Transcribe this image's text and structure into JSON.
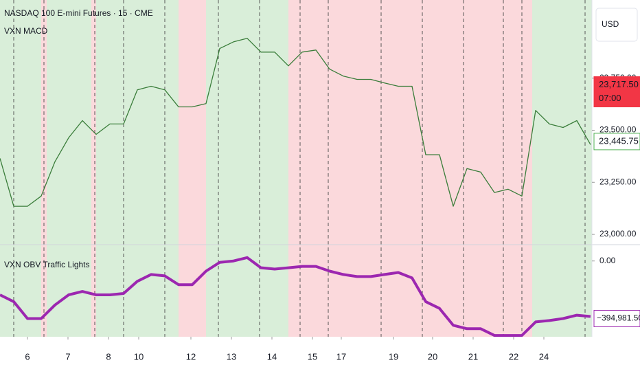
{
  "header": {
    "symbol": "NASDAQ 100 E-mini Futures · 15 · CME",
    "indicator": "VXN MACD",
    "currency": "USD"
  },
  "price_pane": {
    "color": "#3a7d3a",
    "ylim": [
      22954,
      24125
    ],
    "yticks": [
      {
        "value": 23000,
        "label": "23,000.00"
      },
      {
        "value": 23250,
        "label": "23,250.00"
      },
      {
        "value": 23500,
        "label": "23,500.00"
      },
      {
        "value": 23750,
        "label": "23,750.00"
      }
    ],
    "values": [
      23365,
      23135,
      23135,
      23184,
      23349,
      23464,
      23546,
      23480,
      23530,
      23530,
      23694,
      23711,
      23694,
      23612,
      23612,
      23628,
      23892,
      23924,
      23941,
      23875,
      23875,
      23809,
      23875,
      23885,
      23793,
      23760,
      23744,
      23744,
      23727,
      23711,
      23711,
      23382,
      23382,
      23135,
      23316,
      23299,
      23201,
      23217,
      23184,
      23595,
      23530,
      23513,
      23546,
      23431
    ],
    "markers": [
      {
        "value": 23717.5,
        "label": "23,717.50",
        "time": "07:00",
        "color": "#f23645"
      },
      {
        "value": 23445.75,
        "label": "23,445.75",
        "color": "#4caf50"
      }
    ]
  },
  "obv_pane": {
    "title": "VXN OBV Traffic Lights",
    "color": "#9c27b0",
    "ylim": [
      -520000,
      93000
    ],
    "yticks": [
      {
        "value": 0,
        "label": "0.00"
      }
    ],
    "values": [
      -232350,
      -278820,
      -395000,
      -395000,
      -302055,
      -232350,
      -209115,
      -232350,
      -232350,
      -223056,
      -139410,
      -92940,
      -102234,
      -162645,
      -162645,
      -69705,
      -9294,
      0,
      23235,
      -46470,
      -55764,
      -46470,
      -37176,
      -37176,
      -69705,
      -92940,
      -106881,
      -106881,
      -92940,
      -78999,
      -116175,
      -278820,
      -325290,
      -441465,
      -464700,
      -464700,
      -511170,
      -511170,
      -511170,
      -418230,
      -408936,
      -394995,
      -371760,
      -381054
    ],
    "marker": {
      "value": -394981.5,
      "label": "−394,981.50"
    }
  },
  "x_axis": {
    "xlim": [
      0,
      43.1
    ],
    "xticks": [
      {
        "value": 2,
        "label": "6"
      },
      {
        "value": 4.95,
        "label": "7"
      },
      {
        "value": 7.9,
        "label": "8"
      },
      {
        "value": 10.1,
        "label": "10"
      },
      {
        "value": 13.9,
        "label": "12"
      },
      {
        "value": 16.85,
        "label": "13"
      },
      {
        "value": 19.8,
        "label": "14"
      },
      {
        "value": 22.75,
        "label": "15"
      },
      {
        "value": 24.85,
        "label": "17"
      },
      {
        "value": 28.65,
        "label": "19"
      },
      {
        "value": 31.5,
        "label": "20"
      },
      {
        "value": 34.45,
        "label": "21"
      },
      {
        "value": 37.4,
        "label": "22"
      },
      {
        "value": 39.6,
        "label": "24"
      }
    ]
  }
}
